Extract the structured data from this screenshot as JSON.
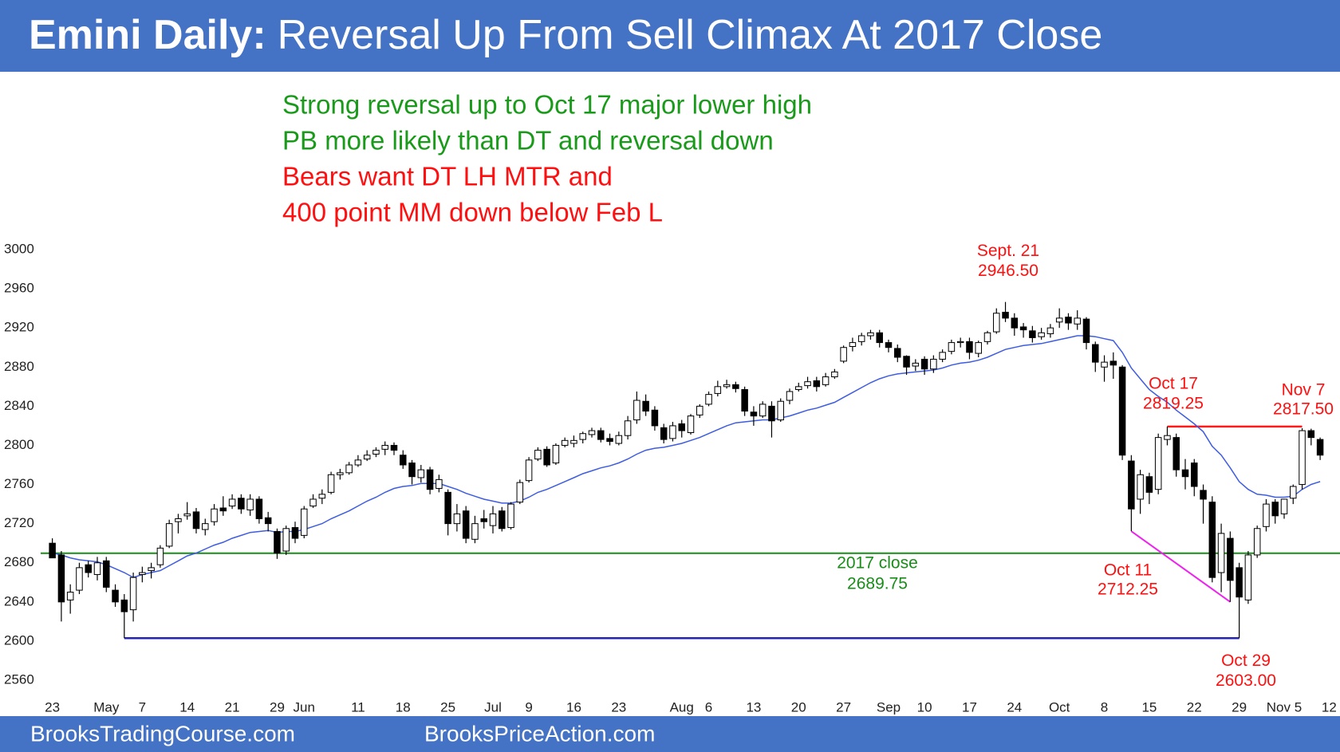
{
  "chart_data": {
    "type": "candlestick",
    "title_lead": "Emini Daily:",
    "title": "Reversal Up From Sell Climax At 2017 Close",
    "header_color": "#4472c4",
    "notes": [
      {
        "text": "Strong reversal up to Oct 17 major lower high",
        "color": "#1a9a1a"
      },
      {
        "text": "PB more likely than DT and reversal down",
        "color": "#1a9a1a"
      },
      {
        "text": "Bears want DT LH MTR and",
        "color": "#ff1010"
      },
      {
        "text": "400 point MM down below Feb L",
        "color": "#ff1010"
      }
    ],
    "ylim": [
      2560,
      3000
    ],
    "yticks": [
      2560,
      2600,
      2640,
      2680,
      2720,
      2760,
      2800,
      2840,
      2880,
      2920,
      2960,
      3000
    ],
    "categories": [
      "23",
      null,
      null,
      null,
      null,
      null,
      "May",
      null,
      null,
      null,
      "7",
      null,
      null,
      null,
      null,
      "14",
      null,
      null,
      null,
      null,
      "21",
      null,
      null,
      null,
      null,
      "29",
      null,
      null,
      "Jun",
      null,
      null,
      null,
      null,
      null,
      "11",
      null,
      null,
      null,
      null,
      "18",
      null,
      null,
      null,
      null,
      "25",
      null,
      null,
      null,
      null,
      "Jul",
      null,
      null,
      null,
      "9",
      null,
      null,
      null,
      null,
      "16",
      null,
      null,
      null,
      null,
      "23",
      null,
      null,
      null,
      null,
      null,
      null,
      "Aug",
      null,
      null,
      "6",
      null,
      null,
      null,
      null,
      "13",
      null,
      null,
      null,
      null,
      "20",
      null,
      null,
      null,
      null,
      "27",
      null,
      null,
      null,
      null,
      "Sep",
      null,
      null,
      null,
      "10",
      null,
      null,
      null,
      null,
      "17",
      null,
      null,
      null,
      null,
      "24",
      null,
      null,
      null,
      null,
      "Oct",
      null,
      null,
      null,
      null,
      "8",
      null,
      null,
      null,
      null,
      "15",
      null,
      null,
      null,
      null,
      "22",
      null,
      null,
      null,
      null,
      "29",
      null,
      null,
      null,
      null,
      "Nov 5",
      null,
      null,
      null,
      null,
      "12"
    ],
    "open": [
      2700,
      2688,
      2642,
      2652,
      2678,
      2668,
      2682,
      2652,
      2642,
      2632,
      2668,
      2672,
      2678,
      2697,
      2722,
      2728,
      2732,
      2714,
      2722,
      2736,
      2738,
      2746,
      2734,
      2745,
      2726,
      2712,
      2692,
      2716,
      2708,
      2738,
      2746,
      2752,
      2770,
      2772,
      2780,
      2786,
      2791,
      2796,
      2800,
      2790,
      2782,
      2767,
      2775,
      2756,
      2752,
      2720,
      2733,
      2704,
      2725,
      2718,
      2733,
      2716,
      2742,
      2764,
      2786,
      2796,
      2782,
      2800,
      2802,
      2806,
      2811,
      2815,
      2807,
      2802,
      2810,
      2826,
      2845,
      2836,
      2818,
      2807,
      2822,
      2813,
      2831,
      2842,
      2853,
      2860,
      2862,
      2857,
      2834,
      2830,
      2840,
      2826,
      2846,
      2857,
      2861,
      2866,
      2862,
      2870,
      2886,
      2901,
      2906,
      2912,
      2915,
      2905,
      2899,
      2891,
      2881,
      2888,
      2878,
      2888,
      2896,
      2905,
      2906,
      2894,
      2906,
      2916,
      2936,
      2930,
      2921,
      2917,
      2911,
      2914,
      2926,
      2931,
      2924,
      2929,
      2903,
      2880,
      2886,
      2880,
      2784,
      2745,
      2768,
      2755,
      2806,
      2808,
      2775,
      2782,
      2754,
      2742,
      2670,
      2705,
      2675,
      2642,
      2688,
      2717,
      2742,
      2730,
      2746,
      2760,
      2815,
      2806,
      null
    ],
    "high": [
      2705,
      2692,
      2658,
      2680,
      2682,
      2686,
      2686,
      2658,
      2648,
      2670,
      2676,
      2680,
      2698,
      2724,
      2730,
      2742,
      2736,
      2725,
      2740,
      2748,
      2750,
      2750,
      2750,
      2748,
      2732,
      2715,
      2718,
      2722,
      2738,
      2750,
      2755,
      2773,
      2776,
      2783,
      2790,
      2795,
      2798,
      2804,
      2803,
      2795,
      2785,
      2780,
      2778,
      2770,
      2755,
      2740,
      2738,
      2728,
      2734,
      2738,
      2737,
      2742,
      2765,
      2788,
      2798,
      2799,
      2802,
      2808,
      2810,
      2814,
      2818,
      2818,
      2812,
      2814,
      2830,
      2855,
      2852,
      2840,
      2822,
      2824,
      2826,
      2832,
      2842,
      2855,
      2866,
      2867,
      2865,
      2860,
      2840,
      2845,
      2845,
      2848,
      2858,
      2864,
      2870,
      2870,
      2874,
      2878,
      2902,
      2910,
      2915,
      2918,
      2918,
      2908,
      2903,
      2892,
      2888,
      2891,
      2892,
      2898,
      2908,
      2910,
      2910,
      2907,
      2917,
      2940,
      2946.5,
      2935,
      2925,
      2922,
      2920,
      2924,
      2940,
      2935,
      2938,
      2931,
      2906,
      2892,
      2895,
      2882,
      2790,
      2775,
      2772,
      2812,
      2819.25,
      2812,
      2786,
      2786,
      2760,
      2748,
      2720,
      2712,
      2680,
      2692,
      2718,
      2745,
      2745,
      2745,
      2760,
      2817.5,
      2817,
      2808,
      null
    ],
    "low": [
      2685,
      2620,
      2628,
      2648,
      2665,
      2662,
      2650,
      2635,
      2603,
      2620,
      2660,
      2664,
      2675,
      2695,
      2710,
      2724,
      2710,
      2708,
      2718,
      2728,
      2735,
      2730,
      2728,
      2720,
      2712,
      2684,
      2688,
      2700,
      2705,
      2736,
      2740,
      2750,
      2765,
      2770,
      2778,
      2784,
      2788,
      2790,
      2790,
      2776,
      2760,
      2762,
      2750,
      2752,
      2708,
      2712,
      2700,
      2700,
      2715,
      2710,
      2712,
      2714,
      2740,
      2762,
      2784,
      2778,
      2780,
      2798,
      2798,
      2802,
      2808,
      2803,
      2800,
      2800,
      2806,
      2822,
      2830,
      2815,
      2802,
      2804,
      2808,
      2811,
      2828,
      2840,
      2850,
      2858,
      2854,
      2830,
      2820,
      2828,
      2808,
      2824,
      2842,
      2855,
      2858,
      2855,
      2860,
      2868,
      2884,
      2896,
      2902,
      2908,
      2900,
      2895,
      2885,
      2872,
      2876,
      2872,
      2874,
      2885,
      2893,
      2900,
      2888,
      2890,
      2903,
      2914,
      2926,
      2912,
      2910,
      2905,
      2908,
      2910,
      2920,
      2918,
      2918,
      2898,
      2875,
      2865,
      2868,
      2785,
      2712.25,
      2730,
      2740,
      2750,
      2800,
      2768,
      2755,
      2748,
      2720,
      2660,
      2650,
      2640,
      2603,
      2638,
      2685,
      2712,
      2720,
      2725,
      2740,
      2755,
      2800,
      2785,
      null
    ],
    "close": [
      2685,
      2640,
      2650,
      2675,
      2670,
      2680,
      2655,
      2640,
      2630,
      2665,
      2670,
      2675,
      2695,
      2720,
      2725,
      2730,
      2715,
      2720,
      2735,
      2733,
      2745,
      2735,
      2745,
      2725,
      2720,
      2690,
      2715,
      2705,
      2735,
      2745,
      2750,
      2770,
      2772,
      2780,
      2785,
      2790,
      2795,
      2800,
      2795,
      2780,
      2768,
      2775,
      2755,
      2765,
      2720,
      2730,
      2705,
      2720,
      2722,
      2730,
      2715,
      2740,
      2762,
      2785,
      2795,
      2780,
      2800,
      2805,
      2805,
      2812,
      2815,
      2806,
      2804,
      2810,
      2825,
      2846,
      2835,
      2820,
      2806,
      2820,
      2815,
      2830,
      2840,
      2852,
      2860,
      2862,
      2858,
      2835,
      2830,
      2842,
      2825,
      2845,
      2855,
      2860,
      2865,
      2860,
      2870,
      2875,
      2900,
      2905,
      2912,
      2915,
      2905,
      2900,
      2890,
      2880,
      2884,
      2878,
      2888,
      2895,
      2905,
      2906,
      2895,
      2905,
      2915,
      2935,
      2930,
      2920,
      2918,
      2910,
      2915,
      2920,
      2930,
      2925,
      2930,
      2905,
      2885,
      2885,
      2882,
      2790,
      2735,
      2770,
      2752,
      2808,
      2810,
      2775,
      2768,
      2758,
      2745,
      2665,
      2710,
      2662,
      2645,
      2688,
      2715,
      2740,
      2728,
      2745,
      2758,
      2815,
      2808,
      2790,
      null
    ],
    "up_color": "#ffffff",
    "down_color": "#000000",
    "wick_color": "#000000",
    "ema": {
      "color": "#3d5ce0",
      "values": [
        2690,
        2688,
        2685,
        2683,
        2682,
        2681,
        2678,
        2674,
        2670,
        2665,
        2668,
        2670,
        2672,
        2677,
        2682,
        2687,
        2690,
        2694,
        2698,
        2701,
        2705,
        2708,
        2711,
        2712,
        2713,
        2711,
        2712,
        2712,
        2714,
        2717,
        2720,
        2725,
        2729,
        2733,
        2738,
        2743,
        2747,
        2752,
        2756,
        2758,
        2759,
        2761,
        2761,
        2761,
        2758,
        2755,
        2751,
        2748,
        2745,
        2743,
        2741,
        2741,
        2743,
        2747,
        2752,
        2755,
        2759,
        2763,
        2767,
        2771,
        2774,
        2777,
        2779,
        2782,
        2786,
        2791,
        2795,
        2797,
        2798,
        2800,
        2802,
        2805,
        2808,
        2812,
        2816,
        2820,
        2823,
        2824,
        2825,
        2826,
        2826,
        2828,
        2830,
        2833,
        2836,
        2838,
        2841,
        2844,
        2849,
        2854,
        2859,
        2864,
        2868,
        2871,
        2873,
        2874,
        2875,
        2876,
        2877,
        2879,
        2882,
        2884,
        2885,
        2887,
        2890,
        2894,
        2898,
        2900,
        2902,
        2903,
        2904,
        2906,
        2908,
        2910,
        2912,
        2912,
        2911,
        2909,
        2907,
        2895,
        2879,
        2868,
        2857,
        2850,
        2844,
        2836,
        2829,
        2822,
        2814,
        2799,
        2790,
        2777,
        2763,
        2755,
        2750,
        2749,
        2747,
        2747,
        2748,
        2755,
        2760,
        2763,
        null
      ]
    },
    "level_colors": {
      "close_2017": "#1a8c1a",
      "lower_high": "#ff1a1a",
      "bottom": "#2323b5",
      "wedge": "#ee22ee"
    },
    "annotations": [
      {
        "text": "Sept. 21",
        "value": 2946.5,
        "label": "2946.50",
        "color": "#ff1010"
      },
      {
        "text": "Oct 17",
        "value": 2819.25,
        "label": "2819.25",
        "color": "#ff1010"
      },
      {
        "text": "Nov 7",
        "value": 2817.5,
        "label": "2817.50",
        "color": "#ff1010"
      },
      {
        "text": "2017 close",
        "value": 2689.75,
        "label": "2689.75",
        "color": "#1a8c1a"
      },
      {
        "text": "Oct 11",
        "value": 2712.25,
        "label": "2712.25",
        "color": "#ff1010"
      },
      {
        "text": "Oct 29",
        "value": 2603,
        "label": "2603.00",
        "color": "#ff1010"
      }
    ]
  },
  "footer": {
    "left": "BrooksTradingCourse.com",
    "right": "BrooksPriceAction.com"
  }
}
